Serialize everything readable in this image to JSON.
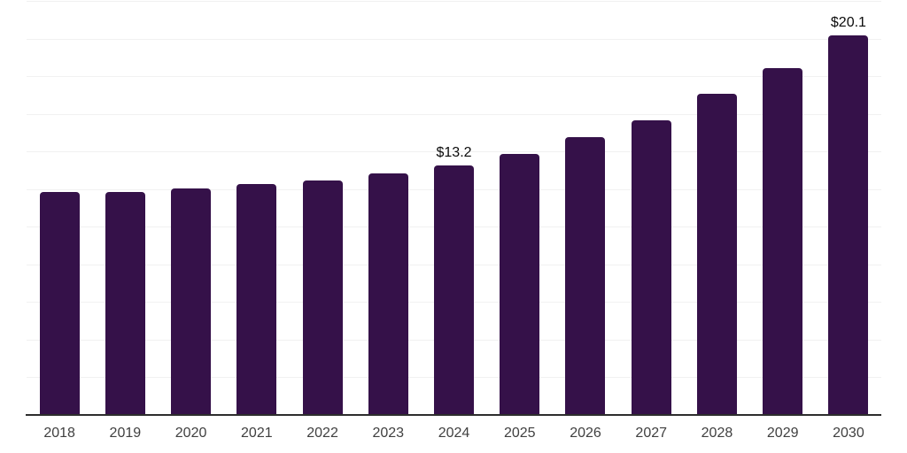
{
  "chart_style": {
    "background_color": "#ffffff",
    "bar_color": "#351149",
    "gridline_color": "#f1f1f1",
    "axis_line_color": "#2d2d2d",
    "tick_label_color": "#404040",
    "data_label_color": "#0b0b0b"
  },
  "chart_data": {
    "type": "bar",
    "categories": [
      "2018",
      "2019",
      "2020",
      "2021",
      "2022",
      "2023",
      "2024",
      "2025",
      "2026",
      "2027",
      "2028",
      "2029",
      "2030"
    ],
    "values": [
      11.8,
      11.8,
      12.0,
      12.2,
      12.4,
      12.8,
      13.2,
      13.8,
      14.7,
      15.6,
      17.0,
      18.4,
      20.1
    ],
    "data_labels": [
      "",
      "",
      "",
      "",
      "",
      "",
      "$13.2",
      "",
      "",
      "",
      "",
      "",
      "$20.1"
    ],
    "xlabel": "",
    "ylabel": "",
    "ylim": [
      0,
      22
    ],
    "gridline_step": 2,
    "grid": true,
    "legend": false,
    "y_axis_labels_visible": false
  }
}
